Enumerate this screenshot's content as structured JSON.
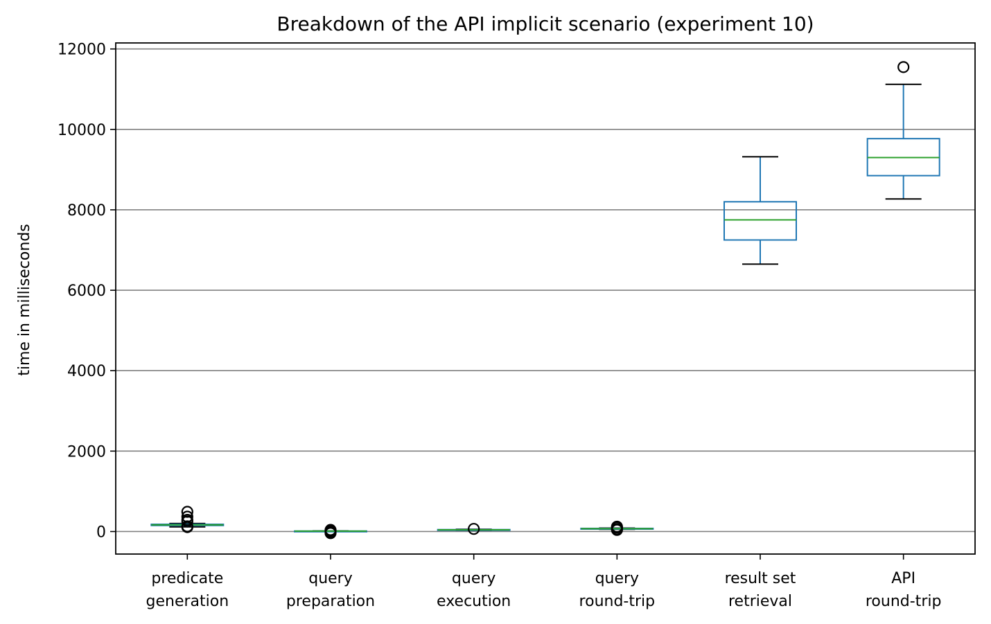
{
  "chart_data": {
    "type": "box",
    "title": "Breakdown of the API implicit scenario (experiment 10)",
    "xlabel": "",
    "ylabel": "time in milliseconds",
    "ylim": [
      -560,
      12150
    ],
    "yticks": [
      0,
      2000,
      4000,
      6000,
      8000,
      10000,
      12000
    ],
    "grid": "y",
    "categories": [
      [
        "predicate",
        "generation"
      ],
      [
        "query",
        "preparation"
      ],
      [
        "query",
        "execution"
      ],
      [
        "query",
        "round-trip"
      ],
      [
        "result set",
        "retrieval"
      ],
      [
        "API",
        "round-trip"
      ]
    ],
    "boxes": [
      {
        "whislo": 115,
        "q1": 150,
        "med": 165,
        "q3": 180,
        "whishi": 200,
        "fliers": [
          110,
          130,
          250,
          290,
          370,
          490
        ]
      },
      {
        "whislo": 5,
        "q1": 8,
        "med": 10,
        "q3": 12,
        "whishi": 15,
        "fliers": [
          -40,
          -10,
          25,
          40
        ]
      },
      {
        "whislo": 30,
        "q1": 38,
        "med": 42,
        "q3": 48,
        "whishi": 55,
        "fliers": [
          65
        ]
      },
      {
        "whislo": 55,
        "q1": 62,
        "med": 70,
        "q3": 78,
        "whishi": 85,
        "fliers": [
          40,
          60,
          100,
          120
        ]
      },
      {
        "whislo": 6650,
        "q1": 7250,
        "med": 7750,
        "q3": 8200,
        "whishi": 9320,
        "fliers": []
      },
      {
        "whislo": 8270,
        "q1": 8850,
        "med": 9300,
        "q3": 9770,
        "whishi": 11120,
        "fliers": [
          11550
        ]
      }
    ],
    "colors": {
      "box": "#1f77b4",
      "median": "#2ca02c",
      "whisker_cap": "#000000",
      "flier": "#000000",
      "grid": "#808080",
      "axis": "#000000"
    }
  }
}
